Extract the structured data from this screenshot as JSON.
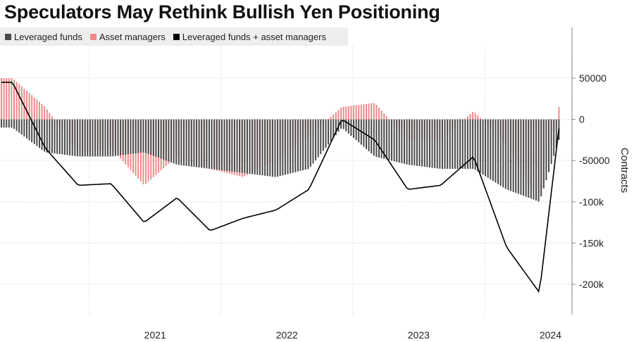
{
  "title": "Speculators May Rethink Bullish Yen Positioning",
  "legend": {
    "leveraged": "Leveraged funds",
    "asset": "Asset managers",
    "combined": "Leveraged funds + asset managers"
  },
  "colors": {
    "leveraged": "#4a4a4a",
    "asset": "#f08a8a",
    "combined": "#000000",
    "grid": "#cccccc"
  },
  "chart_data": {
    "type": "bar",
    "ylabel": "Contracts",
    "ylim": [
      -235000,
      85000
    ],
    "yticks": [
      50000,
      0,
      -50000,
      -100000,
      -150000,
      -200000
    ],
    "ytick_labels": [
      "50000",
      "0",
      "-50000",
      "-100k",
      "-150k",
      "-200k"
    ],
    "x_range": [
      "2020-05",
      "2024-08"
    ],
    "xlabels": [
      "2021",
      "2022",
      "2023",
      "2024"
    ],
    "grid": true,
    "legend_position": "top-left",
    "series": [
      {
        "name": "Leveraged funds",
        "style": "bar",
        "x": [
          "2020-06",
          "2020-09",
          "2020-12",
          "2021-03",
          "2021-06",
          "2021-09",
          "2021-12",
          "2022-03",
          "2022-06",
          "2022-09",
          "2022-12",
          "2023-03",
          "2023-06",
          "2023-09",
          "2023-12",
          "2024-03",
          "2024-06",
          "2024-08"
        ],
        "values": [
          -10000,
          -40000,
          -45000,
          -45000,
          -40000,
          -55000,
          -60000,
          -65000,
          -70000,
          -60000,
          -10000,
          -45000,
          -55000,
          -60000,
          -60000,
          -85000,
          -100000,
          -15000
        ]
      },
      {
        "name": "Asset managers",
        "style": "bar",
        "x": [
          "2020-06",
          "2020-09",
          "2020-12",
          "2021-03",
          "2021-06",
          "2021-09",
          "2021-12",
          "2022-03",
          "2022-06",
          "2022-09",
          "2022-12",
          "2023-03",
          "2023-06",
          "2023-09",
          "2023-12",
          "2024-03",
          "2024-06",
          "2024-08"
        ],
        "values": [
          50000,
          15000,
          -40000,
          -35000,
          -80000,
          -45000,
          -60000,
          -70000,
          -50000,
          -20000,
          15000,
          20000,
          -25000,
          -25000,
          10000,
          -30000,
          -100000,
          30000
        ]
      },
      {
        "name": "Leveraged funds + asset managers",
        "style": "line",
        "x": [
          "2020-06",
          "2020-09",
          "2020-12",
          "2021-03",
          "2021-06",
          "2021-09",
          "2021-12",
          "2022-03",
          "2022-06",
          "2022-09",
          "2022-12",
          "2023-03",
          "2023-06",
          "2023-09",
          "2023-12",
          "2024-03",
          "2024-06",
          "2024-08"
        ],
        "values": [
          45000,
          -35000,
          -80000,
          -78000,
          -125000,
          -95000,
          -135000,
          -120000,
          -110000,
          -85000,
          0,
          -25000,
          -85000,
          -80000,
          -45000,
          -155000,
          -210000,
          15000
        ]
      }
    ]
  }
}
